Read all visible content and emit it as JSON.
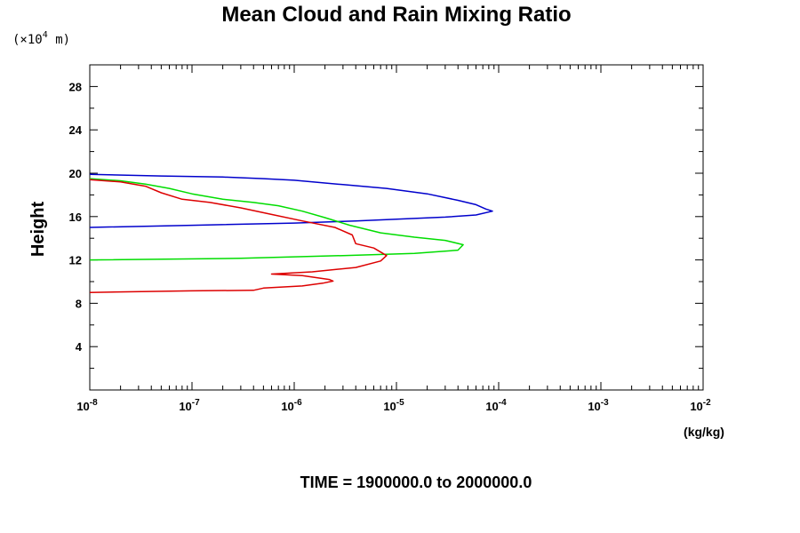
{
  "chart_data": {
    "type": "line",
    "title": "Mean Cloud and Rain Mixing Ratio",
    "y_scale_label": "(×10",
    "y_scale_exp": "4",
    "y_scale_unit": "m)",
    "ylabel": "Height",
    "xlabel_unit": "(kg/kg)",
    "time_label": "TIME = 1900000.0 to 2000000.0",
    "x_scale": "log",
    "xlim": [
      1e-08,
      0.01
    ],
    "ylim": [
      0,
      30
    ],
    "grid": false,
    "legend": "none",
    "x_ticks": [
      {
        "base": "10",
        "exp": "-8"
      },
      {
        "base": "10",
        "exp": "-7"
      },
      {
        "base": "10",
        "exp": "-6"
      },
      {
        "base": "10",
        "exp": "-5"
      },
      {
        "base": "10",
        "exp": "-4"
      },
      {
        "base": "10",
        "exp": "-3"
      },
      {
        "base": "10",
        "exp": "-2"
      }
    ],
    "y_ticks": [
      "4",
      "8",
      "12",
      "16",
      "20",
      "24",
      "28"
    ],
    "series": [
      {
        "color": "#0000cc",
        "points": [
          [
            1e-08,
            19.9
          ],
          [
            5e-08,
            19.75
          ],
          [
            2e-07,
            19.65
          ],
          [
            5e-07,
            19.5
          ],
          [
            1e-06,
            19.35
          ],
          [
            3e-06,
            18.95
          ],
          [
            8e-06,
            18.6
          ],
          [
            2e-05,
            18.1
          ],
          [
            4e-05,
            17.5
          ],
          [
            6e-05,
            17.1
          ],
          [
            7.5e-05,
            16.7
          ],
          [
            8.7e-05,
            16.5
          ],
          [
            6e-05,
            16.15
          ],
          [
            3e-05,
            15.95
          ],
          [
            1e-05,
            15.75
          ],
          [
            4e-06,
            15.6
          ],
          [
            1e-06,
            15.4
          ],
          [
            1e-07,
            15.2
          ],
          [
            1e-08,
            15.0
          ]
        ]
      },
      {
        "color": "#00dd00",
        "points": [
          [
            1e-08,
            19.5
          ],
          [
            2e-08,
            19.3
          ],
          [
            3.5e-08,
            19.0
          ],
          [
            6e-08,
            18.6
          ],
          [
            1e-07,
            18.1
          ],
          [
            2e-07,
            17.6
          ],
          [
            4e-07,
            17.3
          ],
          [
            7e-07,
            17.0
          ],
          [
            1.2e-06,
            16.5
          ],
          [
            2e-06,
            15.9
          ],
          [
            3.5e-06,
            15.2
          ],
          [
            7e-06,
            14.5
          ],
          [
            1.5e-05,
            14.1
          ],
          [
            3e-05,
            13.8
          ],
          [
            4.5e-05,
            13.4
          ],
          [
            4e-05,
            12.9
          ],
          [
            1.5e-05,
            12.6
          ],
          [
            3e-06,
            12.4
          ],
          [
            3e-07,
            12.15
          ],
          [
            1e-08,
            12.0
          ]
        ]
      },
      {
        "color": "#dd0000",
        "points": [
          [
            1e-08,
            19.4
          ],
          [
            2e-08,
            19.2
          ],
          [
            3.5e-08,
            18.8
          ],
          [
            5e-08,
            18.2
          ],
          [
            8e-08,
            17.6
          ],
          [
            1.5e-07,
            17.3
          ],
          [
            3e-07,
            16.8
          ],
          [
            6e-07,
            16.2
          ],
          [
            1.2e-06,
            15.6
          ],
          [
            2.5e-06,
            15.0
          ],
          [
            3.7e-06,
            14.3
          ],
          [
            4e-06,
            13.5
          ],
          [
            6e-06,
            13.1
          ],
          [
            8e-06,
            12.4
          ],
          [
            7e-06,
            11.9
          ],
          [
            4e-06,
            11.3
          ],
          [
            1.5e-06,
            10.9
          ],
          [
            6e-07,
            10.7
          ],
          [
            1.2e-06,
            10.55
          ],
          [
            2.2e-06,
            10.2
          ],
          [
            2.4e-06,
            10.05
          ],
          [
            1.9e-06,
            9.85
          ],
          [
            1.2e-06,
            9.6
          ],
          [
            5e-07,
            9.4
          ],
          [
            4e-07,
            9.2
          ],
          [
            1e-07,
            9.15
          ],
          [
            1e-08,
            9.0
          ]
        ]
      }
    ]
  }
}
